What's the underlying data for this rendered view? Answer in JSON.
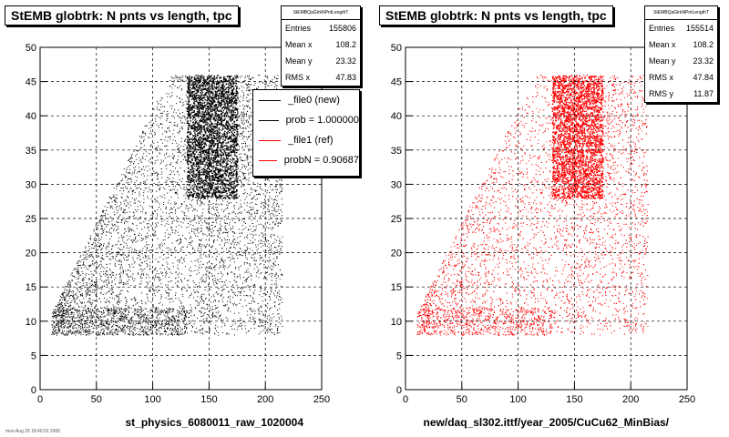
{
  "chart_data": [
    {
      "type": "scatter",
      "title": "StEMB globtrk: N pnts vs length, tpc",
      "xlabel": "st_physics_6080011_raw_1020004",
      "ylabel": "",
      "xlim": [
        0,
        250
      ],
      "ylim": [
        0,
        50
      ],
      "xticks": [
        "0",
        "50",
        "100",
        "150",
        "200",
        "250"
      ],
      "yticks": [
        "0",
        "5",
        "10",
        "15",
        "20",
        "25",
        "30",
        "35",
        "40",
        "45",
        "50"
      ],
      "grid": true,
      "color": "#000000",
      "stats": {
        "name": "StEMBQaGlrkNPntLengthT",
        "entries": "155806",
        "mean_x": "108.2",
        "mean_y": "23.32",
        "rms_x": "47.83"
      },
      "legend": {
        "placement": "top-right",
        "entries": [
          {
            "label": "_file0 (new)",
            "color": "#000000"
          },
          {
            "label": "prob = 1.000000",
            "color": "#000000"
          },
          {
            "label": "_file1 (ref)",
            "color": "#ff0000"
          },
          {
            "label": "probN = 0.90687",
            "color": "#ff0000"
          }
        ]
      }
    },
    {
      "type": "scatter",
      "title": "StEMB globtrk: N pnts vs length, tpc",
      "xlabel": "new/daq_sl302.ittf/year_2005/CuCu62_MinBias/",
      "ylabel": "",
      "xlim": [
        0,
        250
      ],
      "ylim": [
        0,
        50
      ],
      "xticks": [
        "0",
        "50",
        "100",
        "150",
        "200",
        "250"
      ],
      "yticks": [
        "0",
        "5",
        "10",
        "15",
        "20",
        "25",
        "30",
        "35",
        "40",
        "45",
        "50"
      ],
      "grid": true,
      "color": "#ff0000",
      "stats": {
        "name": "StEMBQaGlrkNPntLengthT",
        "entries": "155514",
        "mean_x": "108.2",
        "mean_y": "23.32",
        "rms_x": "47.84",
        "rms_y": "11.87"
      }
    }
  ],
  "footer": "mon Aug 29 18:40:52 2005"
}
